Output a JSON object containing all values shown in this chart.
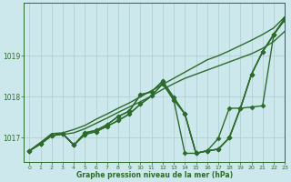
{
  "background_color": "#cde8ec",
  "grid_color": "#aacccc",
  "line_color": "#2d6b2d",
  "xlabel": "Graphe pression niveau de la mer (hPa)",
  "ylim": [
    1016.4,
    1020.3
  ],
  "xlim": [
    -0.5,
    23
  ],
  "yticks": [
    1017,
    1018,
    1019
  ],
  "xticks": [
    0,
    1,
    2,
    3,
    4,
    5,
    6,
    7,
    8,
    9,
    10,
    11,
    12,
    13,
    14,
    15,
    16,
    17,
    18,
    19,
    20,
    21,
    22,
    23
  ],
  "series": [
    [
      1016.68,
      1016.85,
      1017.05,
      1017.1,
      1016.82,
      1017.08,
      1017.15,
      1017.28,
      1017.42,
      1017.58,
      1017.82,
      1018.02,
      1018.32,
      1017.92,
      1017.58,
      1016.62,
      1016.68,
      1016.72,
      1017.0,
      1017.72,
      1018.55,
      1019.1,
      1019.52,
      1019.88
    ],
    [
      1016.68,
      1016.85,
      1017.05,
      1017.1,
      1016.82,
      1017.08,
      1017.15,
      1017.28,
      1017.42,
      1017.58,
      1017.82,
      1018.02,
      1018.32,
      1017.92,
      1016.62,
      1016.62,
      1016.68,
      1016.98,
      1017.72,
      1017.72,
      1017.75,
      1017.78,
      1019.52,
      1019.88
    ],
    [
      1016.68,
      1016.85,
      1017.05,
      1017.1,
      1016.82,
      1017.12,
      1017.18,
      1017.32,
      1017.52,
      1017.65,
      1018.05,
      1018.12,
      1018.38,
      1017.98,
      1017.58,
      1016.62,
      1016.68,
      1016.72,
      1017.0,
      1017.72,
      1018.55,
      1019.1,
      1019.52,
      1019.92
    ],
    [
      1016.68,
      1016.85,
      1017.05,
      1017.1,
      1016.82,
      1017.12,
      1017.18,
      1017.32,
      1017.52,
      1017.65,
      1018.05,
      1018.12,
      1018.38,
      1017.98,
      1017.58,
      1016.62,
      1016.68,
      1016.72,
      1017.0,
      1017.72,
      1018.55,
      1019.1,
      1019.52,
      1019.92
    ]
  ],
  "smooth_series": [
    [
      1016.68,
      1016.88,
      1017.1,
      1017.12,
      1017.2,
      1017.3,
      1017.45,
      1017.58,
      1017.72,
      1017.85,
      1018.0,
      1018.15,
      1018.3,
      1018.45,
      1018.6,
      1018.75,
      1018.9,
      1019.0,
      1019.12,
      1019.25,
      1019.38,
      1019.52,
      1019.68,
      1019.95
    ],
    [
      1016.68,
      1016.88,
      1017.05,
      1017.08,
      1017.12,
      1017.22,
      1017.35,
      1017.48,
      1017.62,
      1017.75,
      1017.88,
      1018.02,
      1018.18,
      1018.32,
      1018.45,
      1018.55,
      1018.65,
      1018.75,
      1018.85,
      1018.95,
      1019.05,
      1019.18,
      1019.35,
      1019.6
    ]
  ],
  "marker": "D",
  "markersize": 2.5,
  "linewidth": 1.0
}
